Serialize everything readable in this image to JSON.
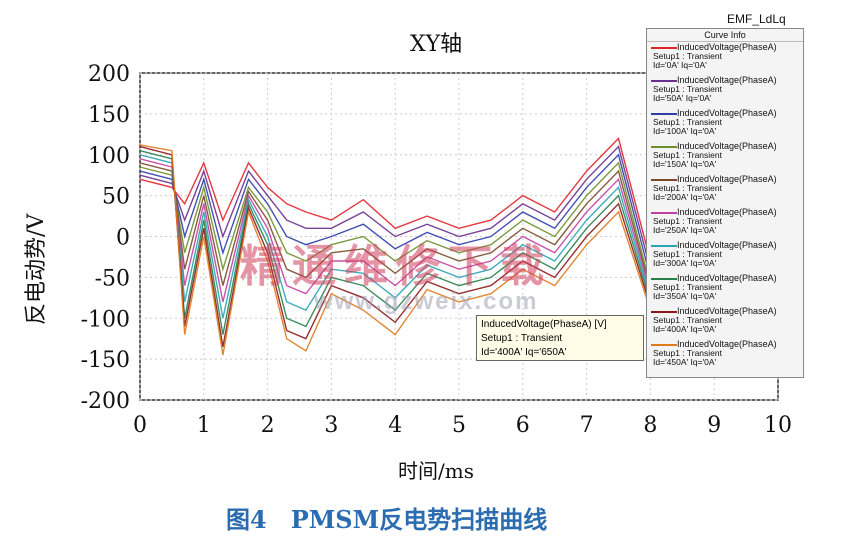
{
  "header": {
    "plot_name": "EMF_LdLq",
    "legend_title": "Curve Info"
  },
  "watermark": {
    "text": "精通维修下载",
    "url": "www.gzweix.com"
  },
  "tooltip": {
    "line1": "InducedVoltage(PhaseA) [V]",
    "line2": "Setup1 : Transient",
    "line3": "Id='400A' Iq='650A'"
  },
  "caption": "图4　PMSM反电势扫描曲线",
  "colors": {
    "caption": "#2b6cb0",
    "series": [
      "#e0242b",
      "#6b2d8e",
      "#2e3da8",
      "#6d8f2a",
      "#7a4a2a",
      "#c23fa3",
      "#2aa3b5",
      "#27804a",
      "#8a1a1a",
      "#e07a1f"
    ]
  },
  "legend": [
    {
      "name": "InducedVoltage(PhaseA)",
      "setup": "Setup1 : Transient",
      "params": "Id='0A' Iq='0A'"
    },
    {
      "name": "InducedVoltage(PhaseA)",
      "setup": "Setup1 : Transient",
      "params": "Id='50A' Iq='0A'"
    },
    {
      "name": "InducedVoltage(PhaseA)",
      "setup": "Setup1 : Transient",
      "params": "Id='100A' Iq='0A'"
    },
    {
      "name": "InducedVoltage(PhaseA)",
      "setup": "Setup1 : Transient",
      "params": "Id='150A' Iq='0A'"
    },
    {
      "name": "InducedVoltage(PhaseA)",
      "setup": "Setup1 : Transient",
      "params": "Id='200A' Iq='0A'"
    },
    {
      "name": "InducedVoltage(PhaseA)",
      "setup": "Setup1 : Transient",
      "params": "Id='250A' Iq='0A'"
    },
    {
      "name": "InducedVoltage(PhaseA)",
      "setup": "Setup1 : Transient",
      "params": "Id='300A' Iq='0A'"
    },
    {
      "name": "InducedVoltage(PhaseA)",
      "setup": "Setup1 : Transient",
      "params": "Id='350A' Iq='0A'"
    },
    {
      "name": "InducedVoltage(PhaseA)",
      "setup": "Setup1 : Transient",
      "params": "Id='400A' Iq='0A'"
    },
    {
      "name": "InducedVoltage(PhaseA)",
      "setup": "Setup1 : Transient",
      "params": "Id='450A' Iq='0A'"
    }
  ],
  "chart_data": {
    "type": "line",
    "title": "XY轴",
    "xlabel": "时间/ms",
    "ylabel": "反电动势/V",
    "xlim": [
      0,
      10
    ],
    "ylim": [
      -200,
      200
    ],
    "xticks": [
      0,
      1,
      2,
      3,
      4,
      5,
      6,
      7,
      8,
      9,
      10
    ],
    "yticks": [
      200,
      150,
      100,
      50,
      0,
      -50,
      -100,
      -150,
      -200
    ],
    "grid": true,
    "legend_position": "top-right",
    "x": [
      0,
      0.5,
      0.7,
      1,
      1.3,
      1.7,
      2,
      2.3,
      2.6,
      3,
      3.5,
      4,
      4.5,
      5,
      5.5,
      6,
      6.5,
      7,
      7.5,
      8
    ],
    "series": [
      {
        "name": "Id='0A' Iq='0A'",
        "values": [
          70,
          60,
          40,
          90,
          20,
          90,
          60,
          40,
          30,
          20,
          45,
          10,
          25,
          10,
          20,
          50,
          30,
          80,
          120,
          -30
        ]
      },
      {
        "name": "Id='50A' Iq='0A'",
        "values": [
          75,
          65,
          20,
          80,
          0,
          80,
          50,
          20,
          10,
          10,
          30,
          0,
          15,
          0,
          10,
          40,
          20,
          70,
          110,
          -40
        ]
      },
      {
        "name": "Id='100A' Iq='0A'",
        "values": [
          80,
          70,
          0,
          70,
          -20,
          70,
          40,
          0,
          -10,
          0,
          15,
          -15,
          5,
          -10,
          0,
          30,
          10,
          60,
          100,
          -50
        ]
      },
      {
        "name": "Id='150A' Iq='0A'",
        "values": [
          85,
          75,
          -20,
          60,
          -40,
          60,
          30,
          -20,
          -30,
          -10,
          0,
          -30,
          -5,
          -20,
          -10,
          20,
          0,
          50,
          90,
          -60
        ]
      },
      {
        "name": "Id='200A' Iq='0A'",
        "values": [
          90,
          80,
          -40,
          50,
          -60,
          55,
          20,
          -40,
          -50,
          -20,
          -15,
          -45,
          -15,
          -30,
          -20,
          10,
          -10,
          40,
          80,
          -65
        ]
      },
      {
        "name": "Id='250A' Iq='0A'",
        "values": [
          95,
          85,
          -60,
          40,
          -80,
          50,
          10,
          -60,
          -70,
          -30,
          -30,
          -60,
          -25,
          -40,
          -30,
          0,
          -20,
          30,
          70,
          -70
        ]
      },
      {
        "name": "Id='300A' Iq='0A'",
        "values": [
          100,
          90,
          -80,
          30,
          -100,
          45,
          0,
          -80,
          -90,
          -40,
          -45,
          -75,
          -35,
          -50,
          -40,
          -10,
          -30,
          20,
          60,
          -75
        ]
      },
      {
        "name": "Id='350A' Iq='0A'",
        "values": [
          105,
          95,
          -100,
          20,
          -120,
          40,
          -10,
          -100,
          -110,
          -50,
          -60,
          -90,
          -45,
          -60,
          -50,
          -20,
          -40,
          10,
          50,
          -80
        ]
      },
      {
        "name": "Id='400A' Iq='0A'",
        "values": [
          110,
          100,
          -110,
          10,
          -135,
          35,
          -20,
          -115,
          -125,
          -60,
          -75,
          -105,
          -55,
          -70,
          -60,
          -30,
          -50,
          0,
          40,
          -85
        ]
      },
      {
        "name": "Id='450A' Iq='0A'",
        "values": [
          112,
          105,
          -120,
          0,
          -145,
          30,
          -30,
          -125,
          -140,
          -70,
          -90,
          -120,
          -65,
          -80,
          -70,
          -40,
          -60,
          -10,
          30,
          -90
        ]
      }
    ]
  }
}
